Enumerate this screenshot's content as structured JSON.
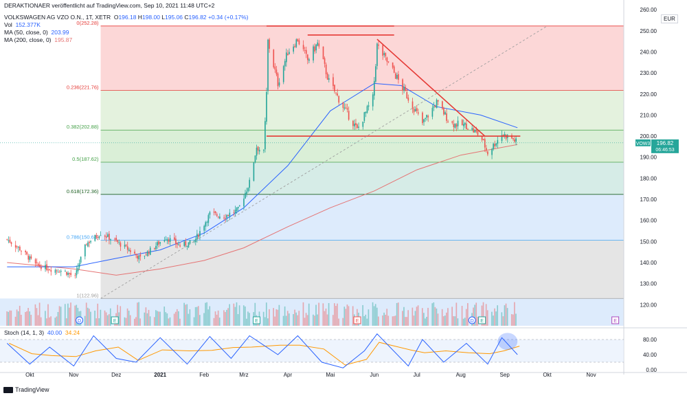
{
  "header": {
    "publisher_line": "DERAKTIONAER veröffentlicht auf TradingView.com, Sep 10, 2021 11:48 UTC+2",
    "symbol": "VOLKSWAGEN AG VZO O.N., 1T, XETR",
    "ohlc": {
      "o": "196.18",
      "h": "198.00",
      "l": "195.06",
      "c": "196.82",
      "change": "+0.34 (+0.17%)"
    },
    "vol_label": "Vol",
    "vol_value": "152.377K",
    "ma50_label": "MA (50, close, 0)",
    "ma50_value": "203.99",
    "ma200_label": "MA (200, close, 0)",
    "ma200_value": "195.87",
    "stoch_label": "Stoch (14, 1, 3)",
    "stoch_k": "40.00",
    "stoch_d": "34.24"
  },
  "currency": "EUR",
  "price_tag": {
    "symbol": "VOW3",
    "price": "196.82",
    "countdown": "06:46:53"
  },
  "event_markers": [
    {
      "label": "D",
      "month": "Nov"
    },
    {
      "label": "E",
      "month": "Nov"
    },
    {
      "label": "E",
      "month": "Mrz"
    },
    {
      "label": "E",
      "month": "Mai"
    },
    {
      "label": "D",
      "month": "Aug"
    },
    {
      "label": "E",
      "month": "Aug"
    },
    {
      "label": "E",
      "month": "Nov"
    }
  ],
  "footer": {
    "brand": "TradingView"
  },
  "colors": {
    "up": "#26a69a",
    "down": "#ef5350",
    "ma50": "#2962ff",
    "ma200": "#e57373",
    "stoch_k": "#2962ff",
    "stoch_d": "#ff9800",
    "trendline": "#e53935"
  },
  "chart_data": {
    "type": "candlestick",
    "title": "",
    "x_axis": {
      "ticks": [
        "Okt",
        "Nov",
        "Dez",
        "2021",
        "Feb",
        "Mrz",
        "Apr",
        "Mai",
        "Jun",
        "Jul",
        "Aug",
        "Sep",
        "Okt",
        "Nov"
      ]
    },
    "y_axis": {
      "range": [
        110,
        262
      ],
      "ticks": [
        120,
        130,
        140,
        150,
        160,
        170,
        180,
        190,
        200,
        210,
        220,
        230,
        240,
        250,
        260
      ]
    },
    "fibonacci": [
      {
        "level": "0",
        "price": 252.28,
        "label": "0(252.28)"
      },
      {
        "level": "0.236",
        "price": 221.76,
        "label": "0.236(221.76)"
      },
      {
        "level": "0.382",
        "price": 202.88,
        "label": "0.382(202.88)"
      },
      {
        "level": "0.5",
        "price": 187.62,
        "label": "0.5(187.62)"
      },
      {
        "level": "0.618",
        "price": 172.36,
        "label": "0.618(172.36)"
      },
      {
        "level": "0.786",
        "price": 150.64,
        "label": "0.786(150.64)"
      },
      {
        "level": "1",
        "price": 122.96,
        "label": "1(122.96)"
      }
    ],
    "close_series": [
      {
        "date": "2020-09-15",
        "close": 151
      },
      {
        "date": "2020-09-25",
        "close": 146
      },
      {
        "date": "2020-10-05",
        "close": 139
      },
      {
        "date": "2020-10-15",
        "close": 137
      },
      {
        "date": "2020-10-25",
        "close": 136
      },
      {
        "date": "2020-11-02",
        "close": 133
      },
      {
        "date": "2020-11-05",
        "close": 140
      },
      {
        "date": "2020-11-10",
        "close": 149
      },
      {
        "date": "2020-11-20",
        "close": 154
      },
      {
        "date": "2020-12-01",
        "close": 150
      },
      {
        "date": "2020-12-10",
        "close": 146
      },
      {
        "date": "2020-12-18",
        "close": 142
      },
      {
        "date": "2021-01-05",
        "close": 152
      },
      {
        "date": "2021-01-15",
        "close": 148
      },
      {
        "date": "2021-01-25",
        "close": 150
      },
      {
        "date": "2021-02-05",
        "close": 163
      },
      {
        "date": "2021-02-15",
        "close": 162
      },
      {
        "date": "2021-02-25",
        "close": 165
      },
      {
        "date": "2021-03-05",
        "close": 178
      },
      {
        "date": "2021-03-10",
        "close": 195
      },
      {
        "date": "2021-03-15",
        "close": 192
      },
      {
        "date": "2021-03-17",
        "close": 220
      },
      {
        "date": "2021-03-18",
        "close": 245
      },
      {
        "date": "2021-03-25",
        "close": 225
      },
      {
        "date": "2021-04-01",
        "close": 240
      },
      {
        "date": "2021-04-08",
        "close": 246
      },
      {
        "date": "2021-04-15",
        "close": 236
      },
      {
        "date": "2021-04-22",
        "close": 244
      },
      {
        "date": "2021-04-30",
        "close": 226
      },
      {
        "date": "2021-05-10",
        "close": 214
      },
      {
        "date": "2021-05-20",
        "close": 203
      },
      {
        "date": "2021-05-31",
        "close": 218
      },
      {
        "date": "2021-06-03",
        "close": 243
      },
      {
        "date": "2021-06-15",
        "close": 230
      },
      {
        "date": "2021-06-25",
        "close": 218
      },
      {
        "date": "2021-07-05",
        "close": 206
      },
      {
        "date": "2021-07-15",
        "close": 216
      },
      {
        "date": "2021-07-25",
        "close": 206
      },
      {
        "date": "2021-08-05",
        "close": 205
      },
      {
        "date": "2021-08-15",
        "close": 200
      },
      {
        "date": "2021-08-20",
        "close": 192
      },
      {
        "date": "2021-08-30",
        "close": 201
      },
      {
        "date": "2021-09-06",
        "close": 199
      },
      {
        "date": "2021-09-10",
        "close": 196.82
      }
    ],
    "ma50": [
      {
        "date": "2020-09-15",
        "value": 138
      },
      {
        "date": "2020-11-01",
        "value": 138
      },
      {
        "date": "2020-12-01",
        "value": 142
      },
      {
        "date": "2021-01-01",
        "value": 146
      },
      {
        "date": "2021-02-01",
        "value": 154
      },
      {
        "date": "2021-03-01",
        "value": 166
      },
      {
        "date": "2021-04-01",
        "value": 186
      },
      {
        "date": "2021-05-01",
        "value": 212
      },
      {
        "date": "2021-06-01",
        "value": 225
      },
      {
        "date": "2021-06-20",
        "value": 224
      },
      {
        "date": "2021-07-15",
        "value": 214
      },
      {
        "date": "2021-08-15",
        "value": 210
      },
      {
        "date": "2021-09-10",
        "value": 204
      }
    ],
    "ma200": [
      {
        "date": "2020-09-15",
        "value": 140
      },
      {
        "date": "2020-11-01",
        "value": 137
      },
      {
        "date": "2020-12-01",
        "value": 134
      },
      {
        "date": "2021-01-01",
        "value": 137
      },
      {
        "date": "2021-02-01",
        "value": 141
      },
      {
        "date": "2021-03-01",
        "value": 147
      },
      {
        "date": "2021-04-01",
        "value": 157
      },
      {
        "date": "2021-05-01",
        "value": 166
      },
      {
        "date": "2021-06-01",
        "value": 174
      },
      {
        "date": "2021-07-01",
        "value": 184
      },
      {
        "date": "2021-08-01",
        "value": 191
      },
      {
        "date": "2021-09-10",
        "value": 196
      }
    ],
    "drawings": [
      {
        "type": "horizontal",
        "from": "2021-03-17",
        "to": "2021-09-12",
        "price": 200
      },
      {
        "type": "horizontal",
        "from": "2021-03-17",
        "to": "2021-06-15",
        "price": 252.28
      },
      {
        "type": "horizontal",
        "from": "2021-04-15",
        "to": "2021-06-15",
        "price": 248
      },
      {
        "type": "trend",
        "from": {
          "date": "2021-06-03",
          "price": 246
        },
        "to": {
          "date": "2021-08-18",
          "price": 200
        }
      },
      {
        "type": "trend",
        "from": {
          "date": "2020-11-20",
          "price": 122.96
        },
        "to": {
          "date": "2021-10-01",
          "price": 252.28
        }
      }
    ],
    "stochastic": {
      "range": [
        0,
        100
      ],
      "levels": [
        80,
        20
      ],
      "ticks": [
        0,
        40,
        80
      ],
      "k_series": [
        {
          "date": "2020-09-15",
          "v": 70
        },
        {
          "date": "2020-10-01",
          "v": 15
        },
        {
          "date": "2020-10-15",
          "v": 60
        },
        {
          "date": "2020-11-01",
          "v": 10
        },
        {
          "date": "2020-11-15",
          "v": 90
        },
        {
          "date": "2020-12-01",
          "v": 30
        },
        {
          "date": "2020-12-15",
          "v": 20
        },
        {
          "date": "2021-01-01",
          "v": 85
        },
        {
          "date": "2021-01-20",
          "v": 15
        },
        {
          "date": "2021-02-05",
          "v": 88
        },
        {
          "date": "2021-02-20",
          "v": 30
        },
        {
          "date": "2021-03-05",
          "v": 90
        },
        {
          "date": "2021-03-25",
          "v": 40
        },
        {
          "date": "2021-04-08",
          "v": 90
        },
        {
          "date": "2021-04-25",
          "v": 20
        },
        {
          "date": "2021-05-10",
          "v": 5
        },
        {
          "date": "2021-05-25",
          "v": 50
        },
        {
          "date": "2021-06-03",
          "v": 95
        },
        {
          "date": "2021-06-25",
          "v": 10
        },
        {
          "date": "2021-07-05",
          "v": 80
        },
        {
          "date": "2021-07-20",
          "v": 20
        },
        {
          "date": "2021-08-05",
          "v": 70
        },
        {
          "date": "2021-08-20",
          "v": 15
        },
        {
          "date": "2021-08-30",
          "v": 85
        },
        {
          "date": "2021-09-10",
          "v": 40
        }
      ]
    }
  }
}
